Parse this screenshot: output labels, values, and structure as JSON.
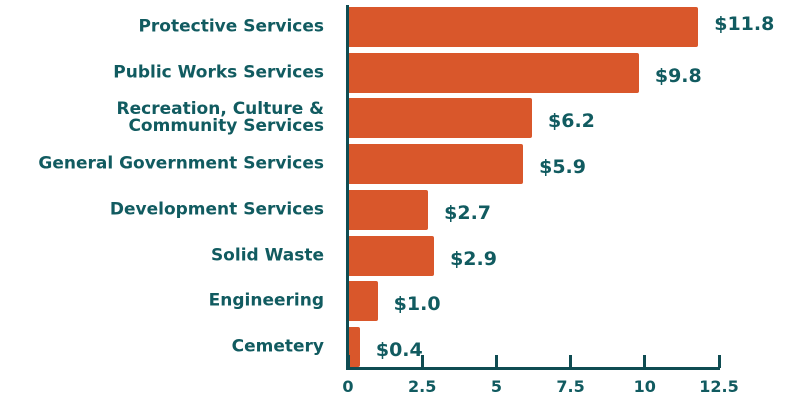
{
  "chart_data": {
    "type": "bar",
    "orientation": "horizontal",
    "categories": [
      "Protective Services",
      "Public Works Services",
      "Recreation, Culture &\nCommunity Services",
      "General Government Services",
      "Development Services",
      "Solid Waste",
      "Engineering",
      "Cemetery"
    ],
    "values": [
      11.8,
      9.8,
      6.2,
      5.9,
      2.7,
      2.9,
      1.0,
      0.4
    ],
    "value_labels": [
      "$11.8",
      "$9.8",
      "$6.2",
      "$5.9",
      "$2.7",
      "$2.9",
      "$1.0",
      "$0.4"
    ],
    "color": "#d9572b",
    "xlim": [
      0,
      12.5
    ],
    "xticks": [
      0,
      2.5,
      5,
      7.5,
      10,
      12.5
    ]
  }
}
